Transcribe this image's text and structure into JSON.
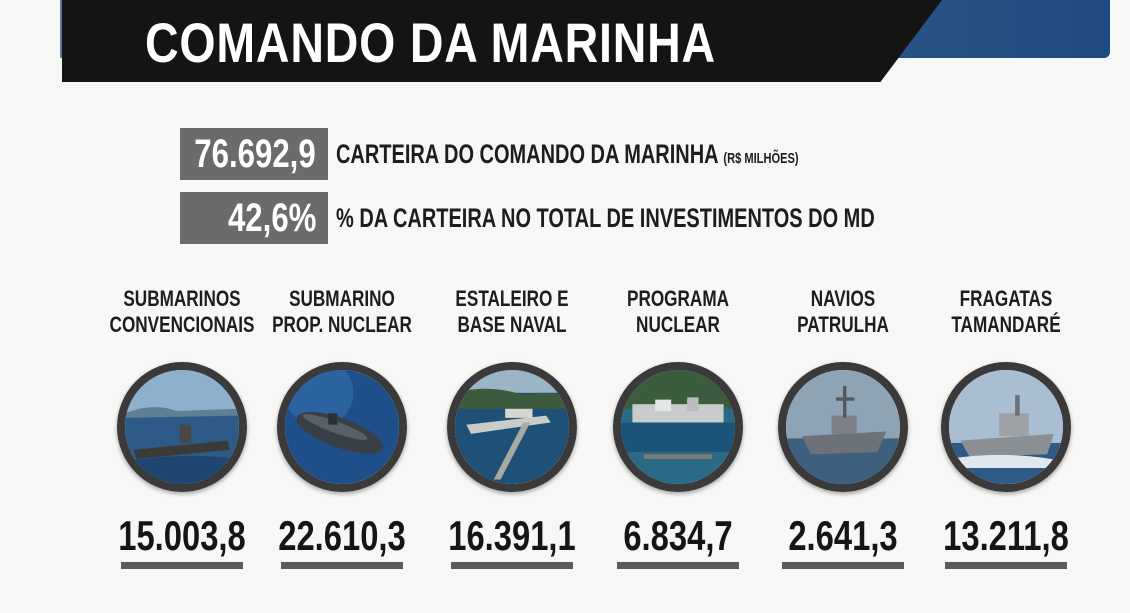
{
  "header": {
    "title": "COMANDO DA MARINHA"
  },
  "stats": [
    {
      "value": "76.692,9",
      "label": "CARTEIRA DO COMANDO DA MARINHA",
      "note": "(R$ MILHÕES)"
    },
    {
      "value": "42,6%",
      "label": "% DA CARTEIRA NO TOTAL DE INVESTIMENTOS DO MD",
      "note": ""
    }
  ],
  "programs": [
    {
      "name": "SUBMARINOS\nCONVENCIONAIS",
      "value": "15.003,8",
      "icon": "conventional-submarine-photo"
    },
    {
      "name": "SUBMARINO\nPROP. NUCLEAR",
      "value": "22.610,3",
      "icon": "nuclear-submarine-photo"
    },
    {
      "name": "ESTALEIRO E\nBASE NAVAL",
      "value": "16.391,1",
      "icon": "shipyard-naval-base-photo"
    },
    {
      "name": "PROGRAMA\nNUCLEAR",
      "value": "6.834,7",
      "icon": "nuclear-program-photo"
    },
    {
      "name": "NAVIOS\nPATRULHA",
      "value": "2.641,3",
      "icon": "patrol-ship-photo"
    },
    {
      "name": "FRAGATAS\nTAMANDARÉ",
      "value": "13.211,8",
      "icon": "frigate-photo"
    }
  ]
}
